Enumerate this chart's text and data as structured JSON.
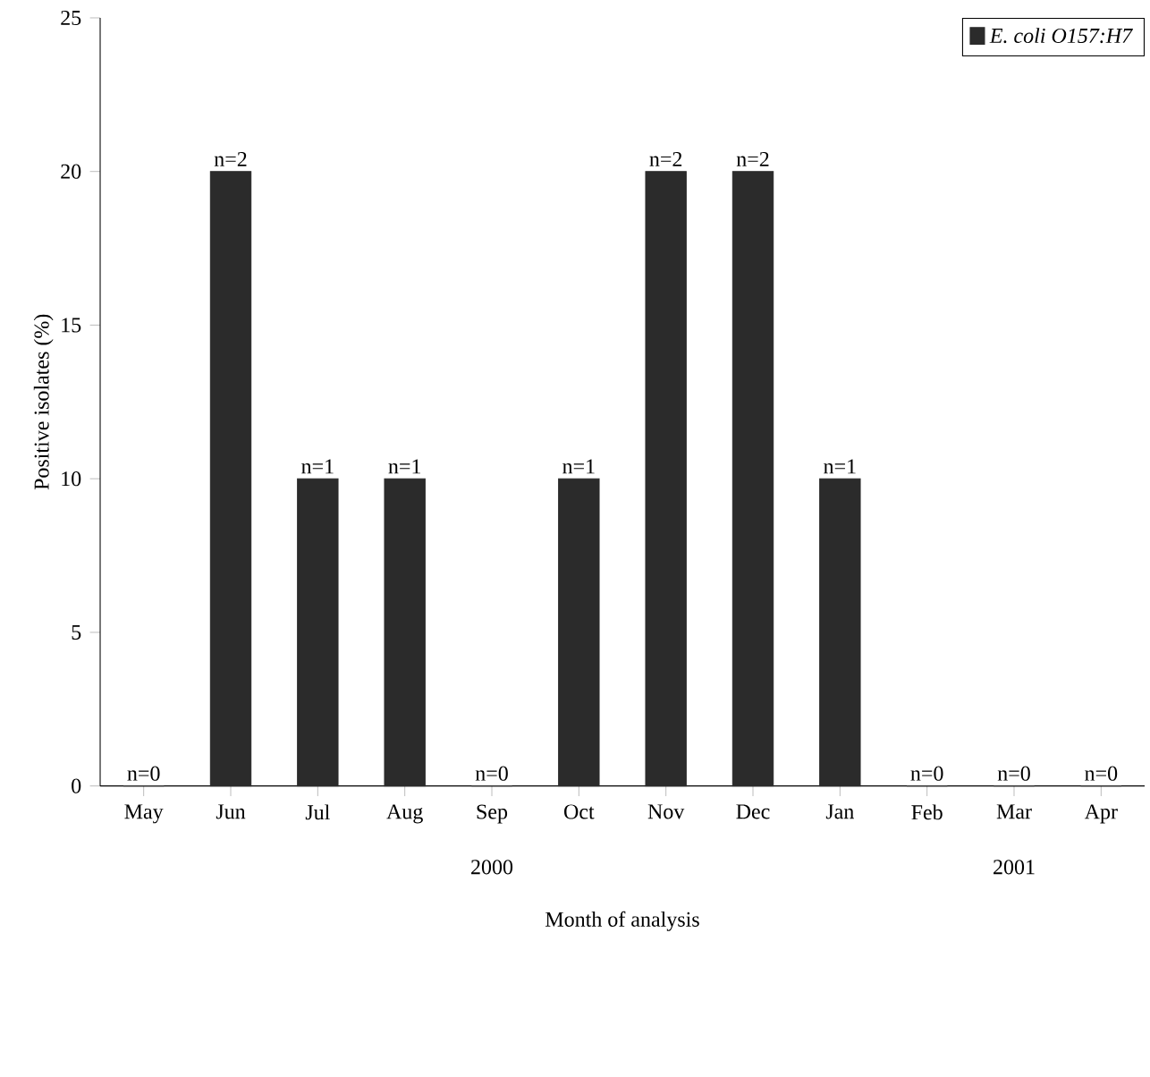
{
  "chart_data": {
    "type": "bar",
    "xlabel": "Month of analysis",
    "ylabel": "Positive isolates (%)",
    "categories": [
      "May",
      "Jun",
      "Jul",
      "Aug",
      "Sep",
      "Oct",
      "Nov",
      "Dec",
      "Jan",
      "Feb",
      "Mar",
      "Apr"
    ],
    "series": [
      {
        "name": "E. coli O157:H7",
        "color": "#2b2b2b",
        "values": [
          0,
          20,
          10,
          10,
          0,
          10,
          20,
          20,
          10,
          0,
          0,
          0
        ]
      }
    ],
    "ylim": [
      0,
      25
    ],
    "yticks": [
      0,
      5,
      10,
      15,
      20,
      25
    ],
    "legend": "top right",
    "grid": false,
    "annotations": [
      "2000",
      "2001",
      {
        "text": "n=0",
        "x": "May",
        "y": 0
      },
      {
        "text": "n=2",
        "x": "Jun",
        "y": 20
      },
      {
        "text": "n=1",
        "x": "Jul",
        "y": 10
      },
      {
        "text": "n=1",
        "x": "Aug",
        "y": 10
      },
      {
        "text": "n=0",
        "x": "Sep",
        "y": 0
      },
      {
        "text": "n=1",
        "x": "Oct",
        "y": 10
      },
      {
        "text": "n=2",
        "x": "Nov",
        "y": 20
      },
      {
        "text": "n=2",
        "x": "Dec",
        "y": 20
      },
      {
        "text": "n=1",
        "x": "Jan",
        "y": 10
      },
      {
        "text": "n=0",
        "x": "Feb",
        "y": 0
      },
      {
        "text": "n=0",
        "x": "Mar",
        "y": 0
      },
      {
        "text": "n=0",
        "x": "Apr",
        "y": 0
      }
    ]
  }
}
